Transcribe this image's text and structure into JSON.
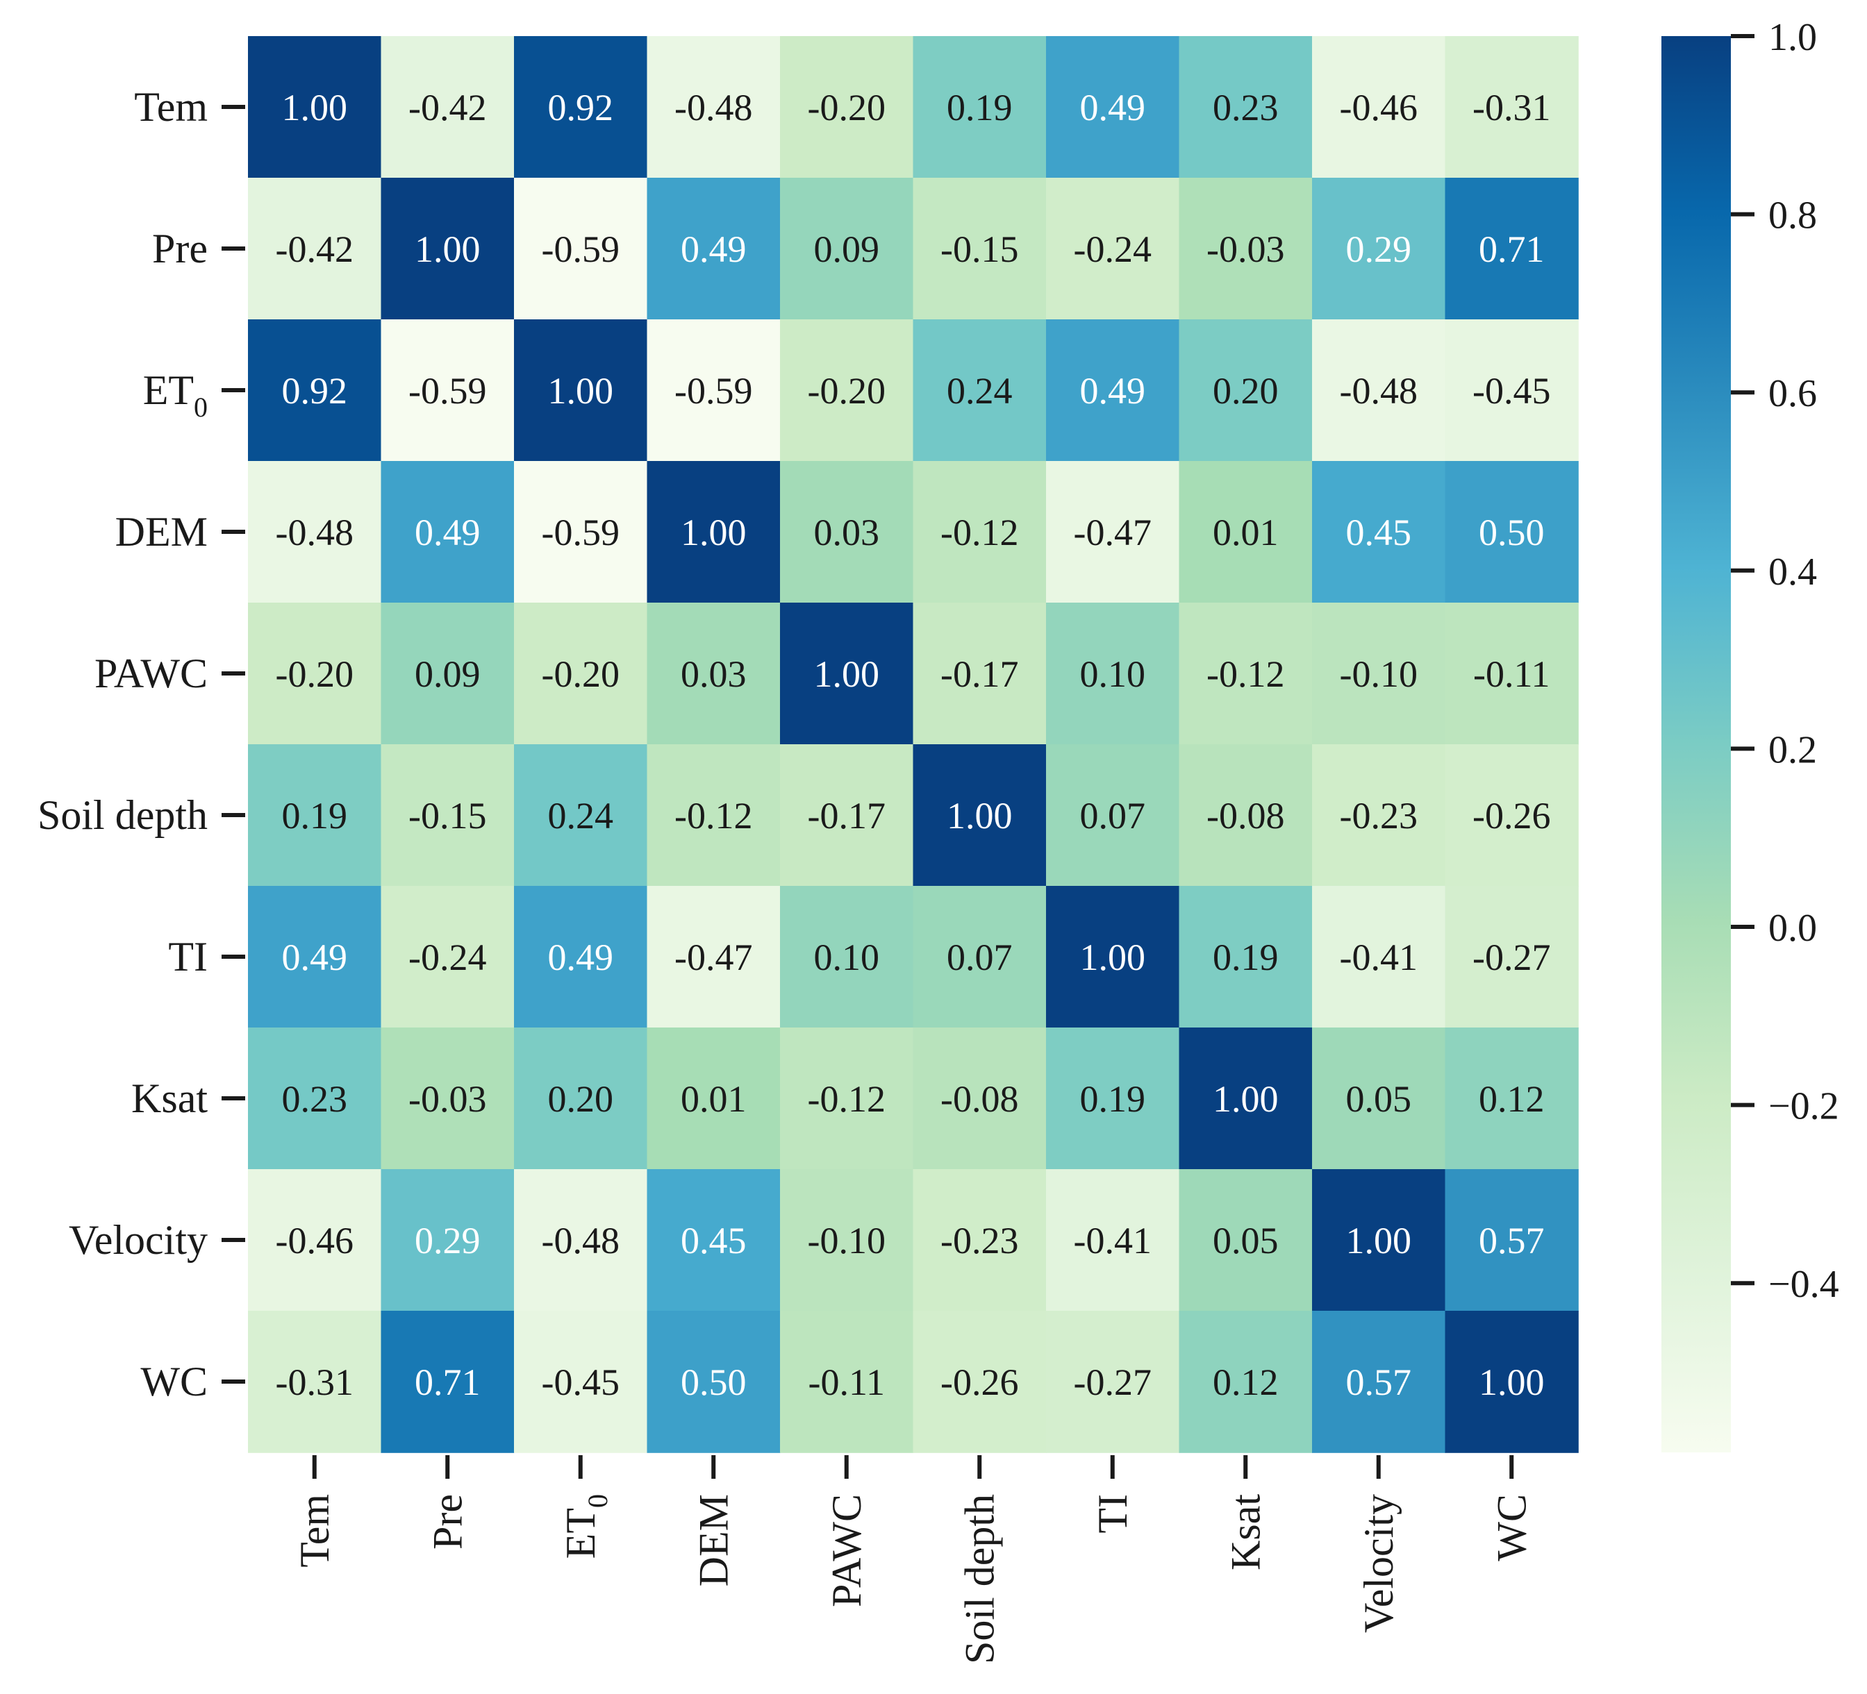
{
  "chart_data": {
    "type": "heatmap",
    "variables": [
      "Tem",
      "Pre",
      "ET0",
      "DEM",
      "PAWC",
      "Soil depth",
      "TI",
      "Ksat",
      "Velocity",
      "WC"
    ],
    "matrix": [
      [
        1.0,
        -0.42,
        0.92,
        -0.48,
        -0.2,
        0.19,
        0.49,
        0.23,
        -0.46,
        -0.31
      ],
      [
        -0.42,
        1.0,
        -0.59,
        0.49,
        0.09,
        -0.15,
        -0.24,
        -0.03,
        0.29,
        0.71
      ],
      [
        0.92,
        -0.59,
        1.0,
        -0.59,
        -0.2,
        0.24,
        0.49,
        0.2,
        -0.48,
        -0.45
      ],
      [
        -0.48,
        0.49,
        -0.59,
        1.0,
        0.03,
        -0.12,
        -0.47,
        0.01,
        0.45,
        0.5
      ],
      [
        -0.2,
        0.09,
        -0.2,
        0.03,
        1.0,
        -0.17,
        0.1,
        -0.12,
        -0.1,
        -0.11
      ],
      [
        0.19,
        -0.15,
        0.24,
        -0.12,
        -0.17,
        1.0,
        0.07,
        -0.08,
        -0.23,
        -0.26
      ],
      [
        0.49,
        -0.24,
        0.49,
        -0.47,
        0.1,
        0.07,
        1.0,
        0.19,
        -0.41,
        -0.27
      ],
      [
        0.23,
        -0.03,
        0.2,
        0.01,
        -0.12,
        -0.08,
        0.19,
        1.0,
        0.05,
        0.12
      ],
      [
        -0.46,
        0.29,
        -0.48,
        0.45,
        -0.1,
        -0.23,
        -0.41,
        0.05,
        1.0,
        0.57
      ],
      [
        -0.31,
        0.71,
        -0.45,
        0.5,
        -0.11,
        -0.26,
        -0.27,
        0.12,
        0.57,
        1.0
      ]
    ],
    "colormap": "GnBu",
    "vmin": -0.59,
    "vmax": 1.0,
    "colorbar_ticks": [
      1.0,
      0.8,
      0.6,
      0.4,
      0.2,
      0.0,
      -0.2,
      -0.4
    ],
    "colorbar_tick_labels": [
      "1.0",
      "0.8",
      "0.6",
      "0.4",
      "0.2",
      "0.0",
      "−0.2",
      "−0.4"
    ],
    "colorbar_position": "right",
    "annotation_format": "0.00",
    "title": "",
    "xlabel": "",
    "ylabel": "",
    "colors": {
      "low": "#f7fcf0",
      "high": "#084081",
      "text_dark": "#1a1a1a",
      "text_light": "#ffffff"
    }
  }
}
